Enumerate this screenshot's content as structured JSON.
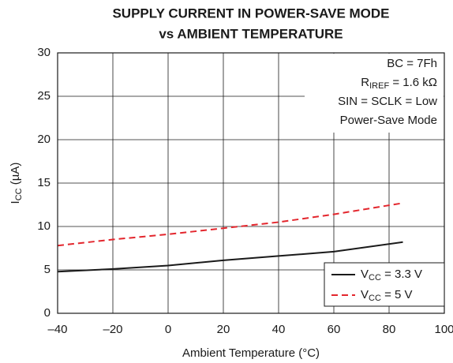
{
  "chart_data": {
    "type": "line",
    "title": [
      "SUPPLY CURRENT IN POWER-SAVE MODE",
      "vs AMBIENT TEMPERATURE"
    ],
    "xlabel": "Ambient Temperature (°C)",
    "ylabel": [
      "I",
      "CC",
      " (µA)"
    ],
    "x": [
      -40,
      -20,
      0,
      20,
      40,
      60,
      85
    ],
    "series": [
      {
        "name": [
          "V",
          "CC",
          " = 3.3 V"
        ],
        "color": "#1a1a1a",
        "dashed": false,
        "values": [
          4.8,
          5.1,
          5.5,
          6.1,
          6.6,
          7.1,
          8.2
        ]
      },
      {
        "name": [
          "V",
          "CC",
          " = 5 V"
        ],
        "color": "#e3262d",
        "dashed": true,
        "values": [
          7.8,
          8.5,
          9.1,
          9.8,
          10.5,
          11.4,
          12.7
        ]
      }
    ],
    "xlim": [
      -40,
      100
    ],
    "xticks": [
      {
        "value": -40,
        "label": "–40"
      },
      {
        "value": -20,
        "label": "–20"
      },
      0,
      20,
      40,
      60,
      80,
      100
    ],
    "ylim": [
      0,
      30
    ],
    "yticks": [
      0,
      5,
      10,
      15,
      20,
      25,
      30
    ],
    "grid": true,
    "legend": "lower right",
    "annotations": [
      "BC = 7Fh",
      [
        "R",
        "IREF",
        " = 1.6 kΩ"
      ],
      "SIN = SCLK = Low",
      "Power-Save Mode"
    ]
  }
}
